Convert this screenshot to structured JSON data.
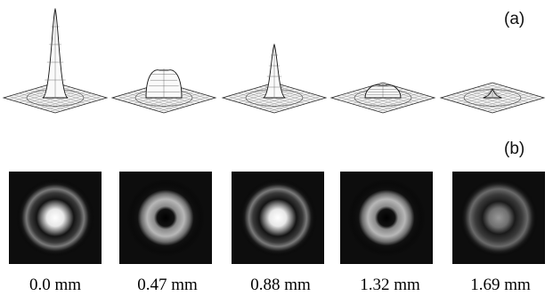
{
  "panel_labels": {
    "a": "(a)",
    "b": "(b)"
  },
  "frames": [
    {
      "caption": "0.0 mm",
      "peak_height": 1.0,
      "profile": "central-peak",
      "image_pattern": "bright-core-with-ring"
    },
    {
      "caption": "0.47 mm",
      "peak_height": 0.33,
      "profile": "flat-top-donut",
      "image_pattern": "donut"
    },
    {
      "caption": "0.88 mm",
      "peak_height": 0.6,
      "profile": "central-peak",
      "image_pattern": "bright-core-with-ring"
    },
    {
      "caption": "1.32 mm",
      "peak_height": 0.16,
      "profile": "flat-top-donut",
      "image_pattern": "donut"
    },
    {
      "caption": "1.69 mm",
      "peak_height": 0.1,
      "profile": "central-peak",
      "image_pattern": "dim-core-with-ring"
    }
  ]
}
